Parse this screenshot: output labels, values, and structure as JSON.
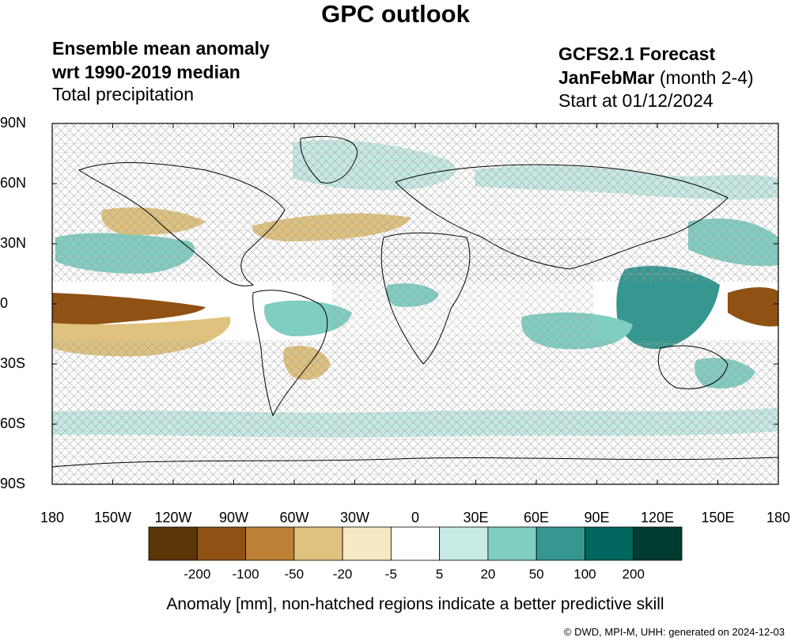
{
  "title": "GPC outlook",
  "header_left": {
    "line1": "Ensemble mean anomaly",
    "line2": "wrt 1990-2019 median",
    "line3": "Total precipitation"
  },
  "header_right": {
    "model": "GCFS2.1 Forecast",
    "season": "JanFebMar",
    "season_note": " (month 2-4)",
    "start": "Start at 01/12/2024"
  },
  "lat_labels": [
    "90N",
    "60N",
    "30N",
    "0",
    "30S",
    "60S",
    "90S"
  ],
  "lon_labels": [
    "180",
    "150W",
    "120W",
    "90W",
    "60W",
    "30W",
    "0",
    "30E",
    "60E",
    "90E",
    "120E",
    "150E",
    "180"
  ],
  "colorbar": {
    "colors": [
      "#5a3505",
      "#8f5214",
      "#bd8035",
      "#dfc27d",
      "#f6e8c3",
      "#ffffff",
      "#c7eae5",
      "#80cdc1",
      "#35978f",
      "#01665e",
      "#003c30"
    ],
    "labels": [
      "-200",
      "-100",
      "-50",
      "-20",
      "-5",
      "5",
      "20",
      "50",
      "100",
      "200"
    ]
  },
  "caption": "Anomaly [mm], non-hatched regions indicate a better predictive skill",
  "credit": "©  DWD, MPI-M, UHH: generated on 2024-12-03",
  "palette": {
    "dry_strong": "#8f5214",
    "dry_moderate": "#bd8035",
    "dry_light": "#dfc27d",
    "dry_weak": "#f6e8c3",
    "wet_weak": "#c7eae5",
    "wet_light": "#80cdc1",
    "wet_moderate": "#35978f",
    "wet_strong": "#01665e"
  }
}
